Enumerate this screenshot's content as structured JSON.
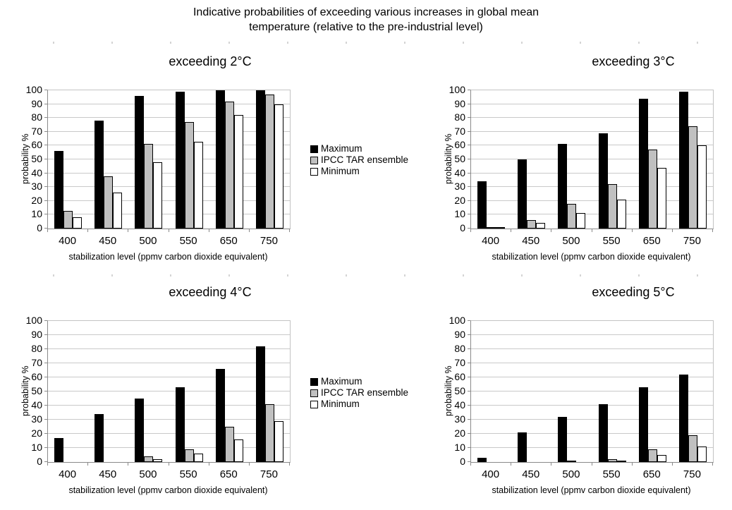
{
  "page": {
    "title_line1": "Indicative probabilities of exceeding various increases in global mean",
    "title_line2": "temperature (relative to the pre-industrial level)"
  },
  "legend": {
    "position": "right",
    "items": [
      {
        "label": "Maximum",
        "color": "#000000"
      },
      {
        "label": "IPCC TAR ensemble",
        "color": "#c0c0c0"
      },
      {
        "label": "Minimum",
        "color": "#ffffff"
      }
    ]
  },
  "colors": {
    "bar_maximum": "#000000",
    "bar_ipcc_tar_ensemble": "#c0c0c0",
    "bar_minimum": "#ffffff",
    "bar_outline": "#000000",
    "gridline": "#c9c9c9",
    "axis_line": "#8a8a8a",
    "plot_frame": "#c3c3c3",
    "text": "#000000",
    "background": "#ffffff"
  },
  "chart_data": [
    {
      "type": "bar",
      "title": "exceeding 2°C",
      "categories": [
        "400",
        "450",
        "500",
        "550",
        "650",
        "750"
      ],
      "series": [
        {
          "name": "Maximum",
          "values": [
            56,
            78,
            96,
            99,
            100,
            100
          ]
        },
        {
          "name": "IPCC TAR ensemble",
          "values": [
            13,
            38,
            61,
            77,
            92,
            97
          ]
        },
        {
          "name": "Minimum",
          "values": [
            8,
            26,
            48,
            63,
            82,
            90
          ]
        }
      ],
      "xlabel": "stabilization level (ppmv carbon dioxide equivalent)",
      "ylabel": "probability %",
      "ylim": [
        0,
        100
      ],
      "ytick_step": 10,
      "grid": true
    },
    {
      "type": "bar",
      "title": "exceeding 3°C",
      "categories": [
        "400",
        "450",
        "500",
        "550",
        "650",
        "750"
      ],
      "series": [
        {
          "name": "Maximum",
          "values": [
            34,
            50,
            61,
            69,
            94,
            99
          ]
        },
        {
          "name": "IPCC TAR ensemble",
          "values": [
            1,
            6,
            18,
            32,
            57,
            74
          ]
        },
        {
          "name": "Minimum",
          "values": [
            1,
            4,
            11,
            21,
            44,
            60
          ]
        }
      ],
      "xlabel": "stabilization level (ppmv carbon dioxide equivalent)",
      "ylabel": "probability %",
      "ylim": [
        0,
        100
      ],
      "ytick_step": 10,
      "grid": true
    },
    {
      "type": "bar",
      "title": "exceeding 4°C",
      "categories": [
        "400",
        "450",
        "500",
        "550",
        "650",
        "750"
      ],
      "series": [
        {
          "name": "Maximum",
          "values": [
            17,
            34,
            45,
            53,
            66,
            82
          ]
        },
        {
          "name": "IPCC TAR ensemble",
          "values": [
            0,
            0,
            4,
            9,
            25,
            41
          ]
        },
        {
          "name": "Minimum",
          "values": [
            0,
            0,
            2,
            6,
            16,
            29
          ]
        }
      ],
      "xlabel": "stabilization level (ppmv carbon dioxide equivalent)",
      "ylabel": "probability %",
      "ylim": [
        0,
        100
      ],
      "ytick_step": 10,
      "grid": true
    },
    {
      "type": "bar",
      "title": "exceeding 5°C",
      "categories": [
        "400",
        "450",
        "500",
        "550",
        "650",
        "750"
      ],
      "series": [
        {
          "name": "Maximum",
          "values": [
            3,
            21,
            32,
            41,
            53,
            62
          ]
        },
        {
          "name": "IPCC TAR ensemble",
          "values": [
            0,
            0,
            1,
            2,
            9,
            19
          ]
        },
        {
          "name": "Minimum",
          "values": [
            0,
            0,
            0,
            1,
            5,
            11
          ]
        }
      ],
      "xlabel": "stabilization level (ppmv carbon dioxide equivalent)",
      "ylabel": "probability %",
      "ylim": [
        0,
        100
      ],
      "ytick_step": 10,
      "grid": true
    }
  ]
}
